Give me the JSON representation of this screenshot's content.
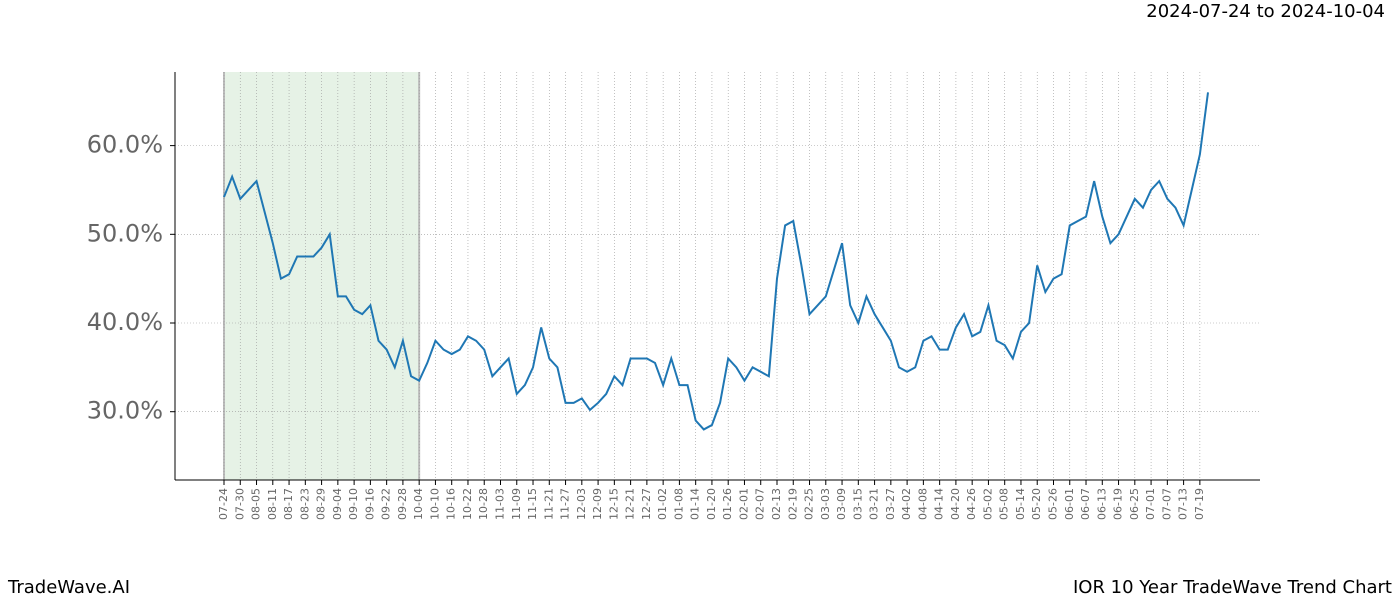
{
  "chart_data": {
    "type": "line",
    "title": "IOR 10 Year TradeWave Trend Chart",
    "subtitle": "2024-07-24 to 2024-10-04",
    "brand": "TradeWave.AI",
    "x": [
      "07-24",
      "07-27",
      "07-30",
      "08-02",
      "08-05",
      "08-08",
      "08-11",
      "08-14",
      "08-17",
      "08-20",
      "08-23",
      "08-26",
      "08-29",
      "09-01",
      "09-04",
      "09-07",
      "09-10",
      "09-13",
      "09-16",
      "09-19",
      "09-22",
      "09-25",
      "09-28",
      "10-01",
      "10-04",
      "10-07",
      "10-10",
      "10-13",
      "10-16",
      "10-19",
      "10-22",
      "10-25",
      "10-28",
      "10-31",
      "11-03",
      "11-06",
      "11-09",
      "11-12",
      "11-15",
      "11-18",
      "11-21",
      "11-24",
      "11-27",
      "11-30",
      "12-03",
      "12-06",
      "12-09",
      "12-12",
      "12-15",
      "12-18",
      "12-21",
      "12-24",
      "12-27",
      "12-30",
      "01-02",
      "01-05",
      "01-08",
      "01-11",
      "01-14",
      "01-17",
      "01-20",
      "01-23",
      "01-26",
      "01-29",
      "02-01",
      "02-04",
      "02-07",
      "02-10",
      "02-13",
      "02-16",
      "02-19",
      "02-22",
      "02-25",
      "02-28",
      "03-03",
      "03-06",
      "03-09",
      "03-12",
      "03-15",
      "03-18",
      "03-21",
      "03-24",
      "03-27",
      "03-30",
      "04-02",
      "04-05",
      "04-08",
      "04-11",
      "04-14",
      "04-17",
      "04-20",
      "04-23",
      "04-26",
      "04-29",
      "05-02",
      "05-05",
      "05-08",
      "05-11",
      "05-14",
      "05-17",
      "05-20",
      "05-23",
      "05-26",
      "05-29",
      "06-01",
      "06-04",
      "06-07",
      "06-10",
      "06-13",
      "06-16",
      "06-19",
      "06-22",
      "06-25",
      "06-28",
      "07-01",
      "07-04",
      "07-07",
      "07-10",
      "07-13",
      "07-16",
      "07-19",
      "07-22"
    ],
    "series": [
      {
        "name": "IOR",
        "color": "#1f77b4",
        "values": [
          54.2,
          56.5,
          54,
          55,
          56,
          52.5,
          49,
          45,
          45.5,
          47.5,
          47.5,
          47.5,
          48.5,
          50,
          43,
          43,
          41.5,
          41,
          42,
          38,
          37,
          35,
          38,
          34,
          33.5,
          35.5,
          38,
          37,
          36.5,
          37,
          38.5,
          38,
          37,
          34,
          35,
          36,
          32,
          33,
          35,
          39.5,
          36,
          35,
          31,
          31,
          31.5,
          30.2,
          31,
          32,
          34,
          33,
          36,
          36,
          36,
          35.5,
          33,
          36,
          33,
          33,
          29,
          28,
          28.5,
          31,
          36,
          35,
          33.5,
          35,
          34.5,
          34,
          45,
          51,
          51.5,
          46.5,
          41,
          42,
          43,
          46,
          49,
          42,
          40,
          43,
          41,
          39.5,
          38,
          35,
          34.5,
          35,
          38,
          38.5,
          37,
          37,
          39.5,
          41,
          38.5,
          39,
          42,
          38,
          37.5,
          36,
          39,
          40,
          46.5,
          43.5,
          45,
          45.5,
          51,
          51.5,
          52,
          56,
          52,
          49,
          50,
          52,
          54,
          53,
          55,
          56,
          54,
          53,
          51,
          55,
          59,
          66
        ]
      }
    ],
    "highlight": [
      "07-24",
      "10-04"
    ],
    "highlight_color": "#e6f2e6",
    "ylim": [
      22.3,
      68.3
    ],
    "yticks": [
      {
        "value": 30,
        "label": "30.0%"
      },
      {
        "value": 40,
        "label": "40.0%"
      },
      {
        "value": 50,
        "label": "50.0%"
      },
      {
        "value": 60,
        "label": "60.0%"
      }
    ],
    "xticks": [
      "07-24",
      "07-30",
      "08-05",
      "08-11",
      "08-17",
      "08-23",
      "08-29",
      "09-04",
      "09-10",
      "09-16",
      "09-22",
      "09-28",
      "10-04",
      "10-10",
      "10-16",
      "10-22",
      "10-28",
      "11-03",
      "11-09",
      "11-15",
      "11-21",
      "11-27",
      "12-03",
      "12-09",
      "12-15",
      "12-21",
      "12-27",
      "01-02",
      "01-08",
      "01-14",
      "01-20",
      "01-26",
      "02-01",
      "02-07",
      "02-13",
      "02-19",
      "02-25",
      "03-03",
      "03-09",
      "03-15",
      "03-21",
      "03-27",
      "04-02",
      "04-08",
      "04-14",
      "04-20",
      "04-26",
      "05-02",
      "05-08",
      "05-14",
      "05-20",
      "05-26",
      "06-01",
      "06-07",
      "06-13",
      "06-19",
      "06-25",
      "07-01",
      "07-07",
      "07-13",
      "07-19"
    ],
    "grid": true
  }
}
